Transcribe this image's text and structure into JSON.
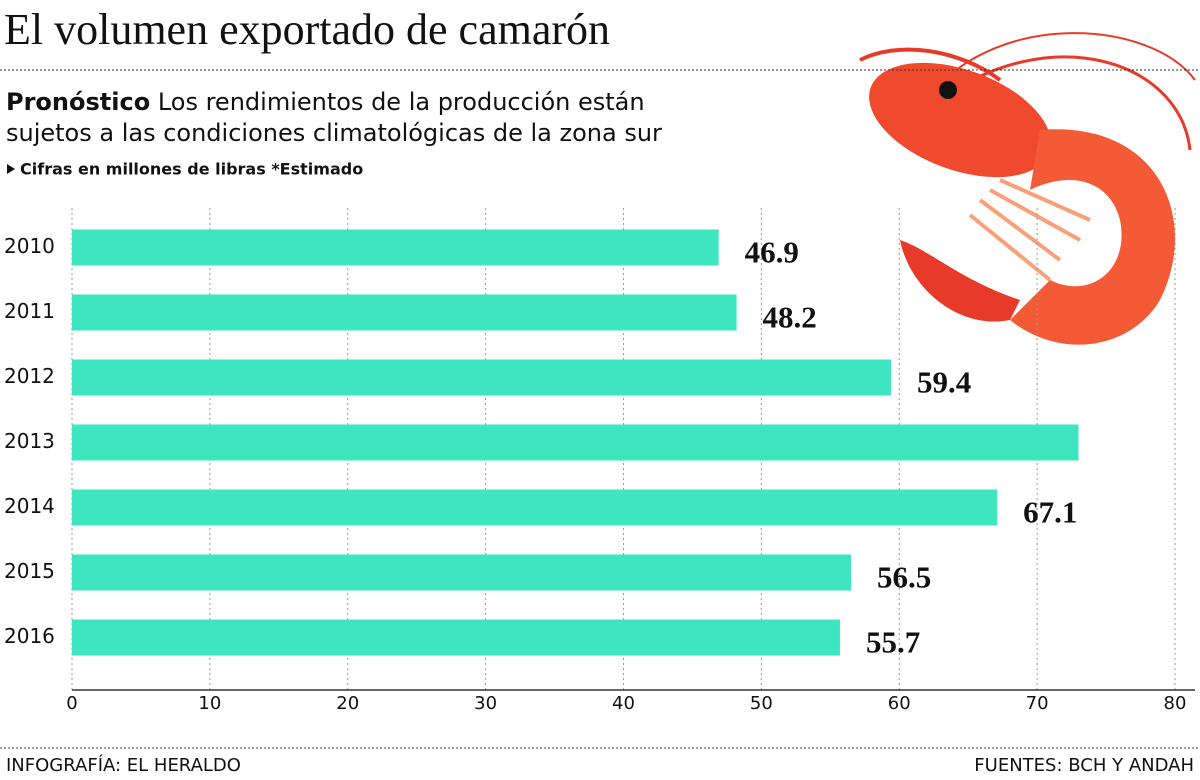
{
  "chart_data": {
    "type": "bar",
    "orientation": "horizontal",
    "title": "El volumen exportado de camarón",
    "subtitle_bold": "Pronóstico",
    "subtitle_lines": [
      "Los rendimientos de la producción están",
      "sujetos a las condiciones climatológicas de la zona sur"
    ],
    "note": "Cifras en millones de libras *Estimado",
    "source_left": "INFOGRAFÍA: EL HERALDO",
    "source_right": "FUENTES: BCH Y ANDAH",
    "categories": [
      "2010",
      "2011",
      "2012",
      "2013",
      "2014",
      "2015",
      "2016"
    ],
    "values": [
      46.9,
      48.2,
      59.4,
      73,
      67.1,
      56.5,
      55.7
    ],
    "value_labels": [
      "46.9",
      "48.2",
      "59.4",
      null,
      "67.1",
      "56.5",
      "55.7"
    ],
    "color": "#3ee6c0",
    "xlim": [
      0,
      80
    ],
    "xticks": [
      0,
      10,
      20,
      30,
      40,
      50,
      60,
      70,
      80
    ],
    "grid": true
  }
}
